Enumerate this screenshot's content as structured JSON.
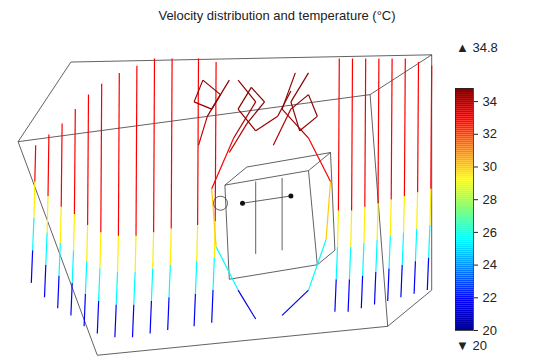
{
  "chart_data": {
    "type": "streamlines",
    "title": "Velocity distribution and temperature (°C)",
    "xlim": [
      0,
      100
    ],
    "ylim": [
      0,
      100
    ],
    "tick_labels": false,
    "color": "jet",
    "series": [
      {
        "x": [
          7,
          7.3,
          7.6,
          7.8,
          8
        ],
        "y": [
          22,
          31,
          40,
          50,
          60
        ],
        "values": [
          20,
          23.5,
          27.5,
          31.5,
          34.5
        ]
      },
      {
        "x": [
          10,
          10.3,
          10.6,
          10.8,
          11
        ],
        "y": [
          18,
          27,
          36,
          46,
          63
        ],
        "values": [
          20,
          23.5,
          27.5,
          31.5,
          34.5
        ]
      },
      {
        "x": [
          13,
          13.3,
          13.6,
          13.8,
          14
        ],
        "y": [
          15,
          24,
          33,
          43,
          66
        ],
        "values": [
          20,
          23.5,
          27.5,
          31.5,
          34.5
        ]
      },
      {
        "x": [
          16,
          16.3,
          16.6,
          16.8,
          17
        ],
        "y": [
          13,
          22,
          31,
          41,
          70
        ],
        "values": [
          20,
          23.5,
          27.5,
          31.5,
          34.5
        ]
      },
      {
        "x": [
          19,
          19.3,
          19.6,
          19.8,
          20
        ],
        "y": [
          10,
          19,
          28,
          38,
          74
        ],
        "values": [
          20,
          23.5,
          27.5,
          31.5,
          34.5
        ]
      },
      {
        "x": [
          22,
          22.3,
          22.6,
          22.8,
          23
        ],
        "y": [
          8,
          17,
          26,
          36,
          77
        ],
        "values": [
          20,
          23.5,
          27.5,
          31.5,
          34.5
        ]
      },
      {
        "x": [
          26,
          26.3,
          26.6,
          26.8,
          27
        ],
        "y": [
          7,
          16,
          25,
          35,
          80
        ],
        "values": [
          20,
          23.5,
          27.5,
          31.5,
          34.5
        ]
      },
      {
        "x": [
          30,
          30.3,
          30.6,
          30.8,
          31
        ],
        "y": [
          7,
          16,
          25,
          35,
          82
        ],
        "values": [
          20,
          23.5,
          27.5,
          31.5,
          34.5
        ]
      },
      {
        "x": [
          34,
          34.3,
          34.6,
          34.8,
          35
        ],
        "y": [
          8,
          17,
          26,
          36,
          84
        ],
        "values": [
          20,
          23.5,
          27.5,
          31.5,
          34.5
        ]
      },
      {
        "x": [
          38,
          38.3,
          38.6,
          38.8,
          39
        ],
        "y": [
          9,
          18,
          27,
          37,
          84
        ],
        "values": [
          20,
          23.5,
          27.5,
          31.5,
          34.5
        ]
      },
      {
        "x": [
          44,
          44.3,
          44.6,
          44.8,
          45
        ],
        "y": [
          10,
          19,
          28,
          38,
          84
        ],
        "values": [
          20,
          23.5,
          27.5,
          31.5,
          34.5
        ]
      },
      {
        "x": [
          48,
          48.3,
          48.6,
          48.8,
          49
        ],
        "y": [
          11,
          20,
          29,
          39,
          83
        ],
        "values": [
          20,
          23.5,
          27.5,
          31.5,
          34.5
        ]
      },
      {
        "x": [
          76,
          76.3,
          76.6,
          76.8,
          77
        ],
        "y": [
          14,
          23,
          32,
          42,
          84
        ],
        "values": [
          20,
          23.5,
          27.5,
          31.5,
          34.5
        ]
      },
      {
        "x": [
          79,
          79.3,
          79.6,
          79.8,
          80
        ],
        "y": [
          14,
          23,
          32,
          42,
          84
        ],
        "values": [
          20,
          23.5,
          27.5,
          31.5,
          34.5
        ]
      },
      {
        "x": [
          82,
          82.3,
          82.6,
          82.8,
          83
        ],
        "y": [
          15,
          24,
          33,
          43,
          84
        ],
        "values": [
          20,
          23.5,
          27.5,
          31.5,
          34.5
        ]
      },
      {
        "x": [
          85,
          85.3,
          85.6,
          85.8,
          86
        ],
        "y": [
          16,
          25,
          34,
          44,
          84
        ],
        "values": [
          20,
          23.5,
          27.5,
          31.5,
          34.5
        ]
      },
      {
        "x": [
          88,
          88.3,
          88.6,
          88.8,
          89
        ],
        "y": [
          17,
          26,
          35,
          45,
          84
        ],
        "values": [
          20,
          23.5,
          27.5,
          31.5,
          34.5
        ]
      },
      {
        "x": [
          91,
          91.3,
          91.6,
          91.8,
          92
        ],
        "y": [
          18,
          27,
          36,
          46,
          84
        ],
        "values": [
          20,
          23.5,
          27.5,
          31.5,
          34.5
        ]
      },
      {
        "x": [
          94,
          94.3,
          94.6,
          94.8,
          95
        ],
        "y": [
          19,
          28,
          37,
          47,
          83
        ],
        "values": [
          20,
          23.5,
          27.5,
          31.5,
          34.5
        ]
      },
      {
        "x": [
          97,
          97.3,
          97.6,
          97.8,
          98
        ],
        "y": [
          20,
          29,
          38,
          48,
          82
        ],
        "values": [
          20,
          23.5,
          27.5,
          31.5,
          34.5
        ]
      },
      {
        "x": [
          58,
          54,
          49,
          48,
          53,
          58,
          54
        ],
        "y": [
          12,
          20,
          32,
          48,
          62,
          72,
          78
        ],
        "values": [
          20,
          23,
          28,
          32,
          34,
          34.5,
          34.5
        ]
      },
      {
        "x": [
          64,
          70,
          74,
          75,
          70,
          64,
          67
        ],
        "y": [
          13,
          20,
          34,
          50,
          62,
          70,
          80
        ],
        "values": [
          20,
          23,
          28,
          32,
          34,
          34.5,
          34.5
        ]
      },
      {
        "x": [
          52,
          56,
          60,
          57,
          54,
          58,
          63,
          66
        ],
        "y": [
          58,
          66,
          72,
          76,
          70,
          64,
          68,
          75
        ],
        "values": [
          33.5,
          34.5,
          34.8,
          34.8,
          34.6,
          34.4,
          34.5,
          34.7
        ]
      },
      {
        "x": [
          62,
          66,
          70,
          72,
          68,
          66,
          70
        ],
        "y": [
          60,
          70,
          74,
          68,
          64,
          72,
          80
        ],
        "values": [
          33.8,
          34.6,
          34.8,
          34.6,
          34.5,
          34.7,
          34.7
        ]
      },
      {
        "x": [
          45,
          47,
          50,
          46,
          44,
          48,
          52
        ],
        "y": [
          60,
          68,
          74,
          78,
          72,
          70,
          78
        ],
        "values": [
          33.5,
          34.3,
          34.6,
          34.6,
          34.5,
          34.5,
          34.7
        ]
      }
    ],
    "outline": [
      [
        4,
        61,
        84,
        74
      ],
      [
        84,
        74,
        88,
        10
      ],
      [
        88,
        10,
        22,
        2
      ],
      [
        22,
        2,
        4,
        61
      ],
      [
        4,
        61,
        16,
        83
      ],
      [
        16,
        83,
        98,
        85
      ],
      [
        98,
        85,
        84,
        74
      ],
      [
        98,
        85,
        98,
        20
      ],
      [
        98,
        20,
        88,
        10
      ],
      [
        51,
        49,
        70,
        53
      ],
      [
        70,
        53,
        72,
        27
      ],
      [
        72,
        27,
        52,
        23
      ],
      [
        52,
        23,
        51,
        49
      ],
      [
        51,
        49,
        56,
        54
      ],
      [
        56,
        54,
        75,
        58
      ],
      [
        75,
        58,
        70,
        53
      ],
      [
        75,
        58,
        76,
        31
      ],
      [
        76,
        31,
        72,
        27
      ],
      [
        55,
        44,
        66,
        46
      ],
      [
        58,
        50,
        58,
        30
      ],
      [
        64,
        51,
        64,
        31
      ]
    ],
    "nodes": [
      [
        55,
        44
      ],
      [
        66,
        46
      ]
    ],
    "ring": [
      50,
      44
    ],
    "colorbar": {
      "range": [
        20,
        34.8
      ],
      "ticks": [
        20,
        22,
        24,
        26,
        28,
        30,
        32,
        34
      ],
      "max_marker": "▲",
      "min_marker": "▼"
    }
  }
}
